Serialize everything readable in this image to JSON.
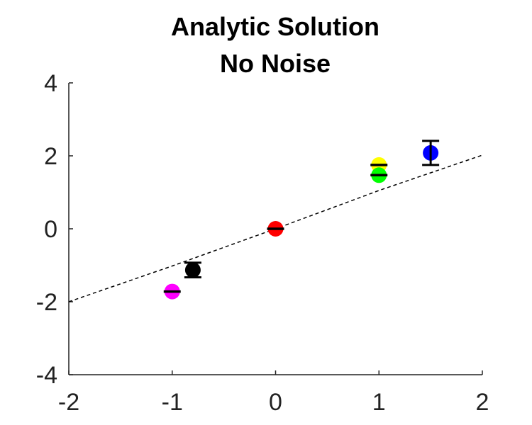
{
  "chart_data": {
    "type": "scatter",
    "title": [
      "Analytic Solution",
      "No Noise"
    ],
    "xlabel": "",
    "ylabel": "",
    "xlim": [
      -2,
      2
    ],
    "ylim": [
      -4,
      4
    ],
    "xticks": [
      "-2",
      "-1",
      "0",
      "1",
      "2"
    ],
    "yticks": [
      "4",
      "2",
      "0",
      "-2",
      "-4"
    ],
    "grid": false,
    "reference_line": {
      "style": "dashed",
      "color": "#000000",
      "points": [
        [
          -2,
          -2
        ],
        [
          -1,
          -1.02
        ],
        [
          0,
          0
        ],
        [
          1,
          1.05
        ],
        [
          2,
          2.02
        ]
      ]
    },
    "points": [
      {
        "x": -1.0,
        "y": -1.72,
        "err": 0.02,
        "color": "#ff00ff"
      },
      {
        "x": -0.8,
        "y": -1.13,
        "err": 0.2,
        "color": "#000000"
      },
      {
        "x": 0.0,
        "y": 0.0,
        "err": 0.02,
        "color": "#ff0000"
      },
      {
        "x": 1.0,
        "y": 1.75,
        "err": 0.02,
        "color": "#ffff00"
      },
      {
        "x": 1.0,
        "y": 1.47,
        "err": 0.02,
        "color": "#00ff00"
      },
      {
        "x": 1.5,
        "y": 2.08,
        "err": 0.33,
        "color": "#0000ff"
      }
    ]
  }
}
